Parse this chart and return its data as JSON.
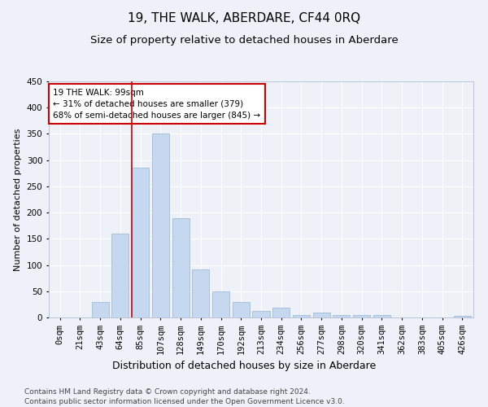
{
  "title": "19, THE WALK, ABERDARE, CF44 0RQ",
  "subtitle": "Size of property relative to detached houses in Aberdare",
  "xlabel": "Distribution of detached houses by size in Aberdare",
  "ylabel": "Number of detached properties",
  "footnote1": "Contains HM Land Registry data © Crown copyright and database right 2024.",
  "footnote2": "Contains public sector information licensed under the Open Government Licence v3.0.",
  "bar_labels": [
    "0sqm",
    "21sqm",
    "43sqm",
    "64sqm",
    "85sqm",
    "107sqm",
    "128sqm",
    "149sqm",
    "170sqm",
    "192sqm",
    "213sqm",
    "234sqm",
    "256sqm",
    "277sqm",
    "298sqm",
    "320sqm",
    "341sqm",
    "362sqm",
    "383sqm",
    "405sqm",
    "426sqm"
  ],
  "bar_values": [
    0,
    0,
    30,
    160,
    285,
    350,
    190,
    92,
    50,
    30,
    13,
    18,
    5,
    10,
    5,
    5,
    5,
    0,
    0,
    0,
    3
  ],
  "bar_color": "#c5d8f0",
  "bar_edgecolor": "#a0bcd8",
  "ylim": [
    0,
    450
  ],
  "yticks": [
    0,
    50,
    100,
    150,
    200,
    250,
    300,
    350,
    400,
    450
  ],
  "vline_bin_index": 4,
  "annotation_title": "19 THE WALK: 99sqm",
  "annotation_line1": "← 31% of detached houses are smaller (379)",
  "annotation_line2": "68% of semi-detached houses are larger (845) →",
  "annotation_box_facecolor": "#ffffff",
  "annotation_box_edgecolor": "#cc0000",
  "vline_color": "#cc0000",
  "background_color": "#eef2f8",
  "grid_color": "#ffffff",
  "title_fontsize": 11,
  "subtitle_fontsize": 9.5,
  "xlabel_fontsize": 9,
  "ylabel_fontsize": 8,
  "tick_fontsize": 7.5,
  "annotation_fontsize": 7.5,
  "footnote_fontsize": 6.5
}
